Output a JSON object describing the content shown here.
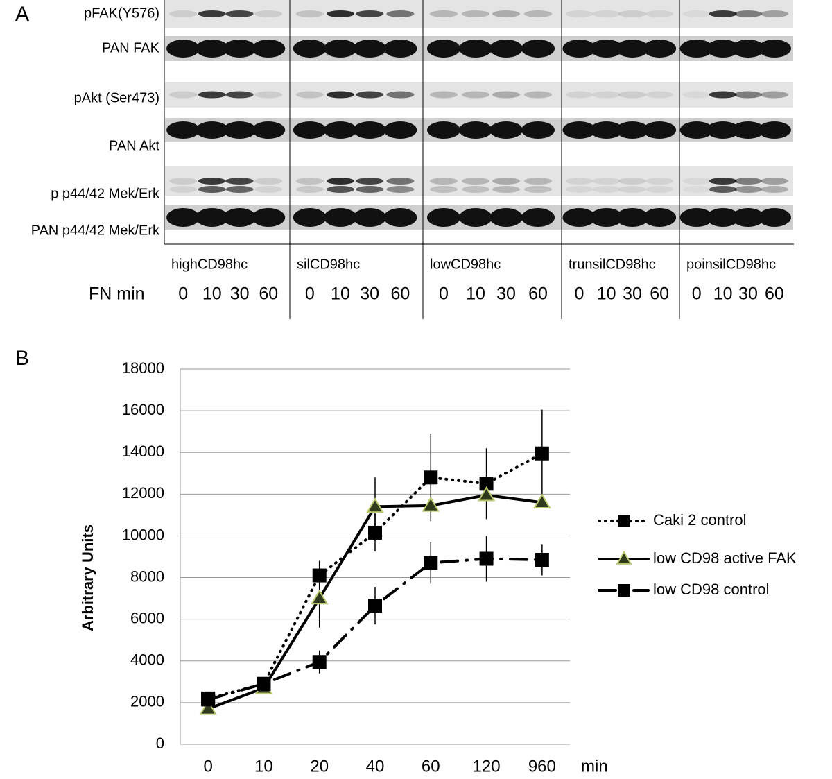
{
  "panel_a": {
    "label": "A",
    "rows": [
      "pFAK(Y576)",
      "PAN FAK",
      "pAkt (Ser473)",
      "PAN Akt",
      "p p44/42 Mek/Erk",
      "PAN p44/42 Mek/Erk"
    ],
    "groups": [
      "highCD98hc",
      "silCD98hc",
      "lowCD98hc",
      "trunsilCD98hc",
      "poinsilCD98hc"
    ],
    "time_label": "FN min",
    "times": [
      [
        0,
        10,
        30,
        60
      ],
      [
        0,
        10,
        30,
        60
      ],
      [
        0,
        10,
        30,
        60
      ],
      [
        0,
        10,
        30,
        60
      ],
      [
        0,
        10,
        30,
        60
      ]
    ]
  },
  "chart_data": {
    "type": "line",
    "panel_label": "B",
    "ylabel": "Arbitrary Units",
    "xlabel": "min",
    "categories": [
      "0",
      "10",
      "20",
      "40",
      "60",
      "120",
      "960"
    ],
    "ylim": [
      0,
      18000
    ],
    "yticks": [
      0,
      2000,
      4000,
      6000,
      8000,
      10000,
      12000,
      14000,
      16000,
      18000
    ],
    "grid": true,
    "legend": "right",
    "series": [
      {
        "name": "Caki 2 control",
        "color": "#000000",
        "dash": "dotted",
        "marker": "square",
        "marker_color": "#000000",
        "values": [
          2200,
          2900,
          8100,
          10150,
          12800,
          12500,
          13950
        ],
        "errors": [
          0,
          300,
          700,
          900,
          2100,
          1700,
          2100
        ]
      },
      {
        "name": "low CD98 active FAK",
        "color": "#000000",
        "dash": "solid",
        "marker": "triangle",
        "marker_color": "#2f3b1c",
        "values": [
          1700,
          2700,
          7000,
          11400,
          11450,
          11950,
          11600
        ],
        "errors": [
          0,
          200,
          1400,
          1400,
          0,
          0,
          0
        ]
      },
      {
        "name": "low CD98 control",
        "color": "#000000",
        "dash": "dashdot",
        "marker": "square",
        "marker_color": "#000000",
        "values": [
          2150,
          2900,
          3950,
          6650,
          8700,
          8900,
          8850
        ],
        "errors": [
          0,
          300,
          550,
          900,
          1000,
          1100,
          750
        ]
      }
    ]
  }
}
